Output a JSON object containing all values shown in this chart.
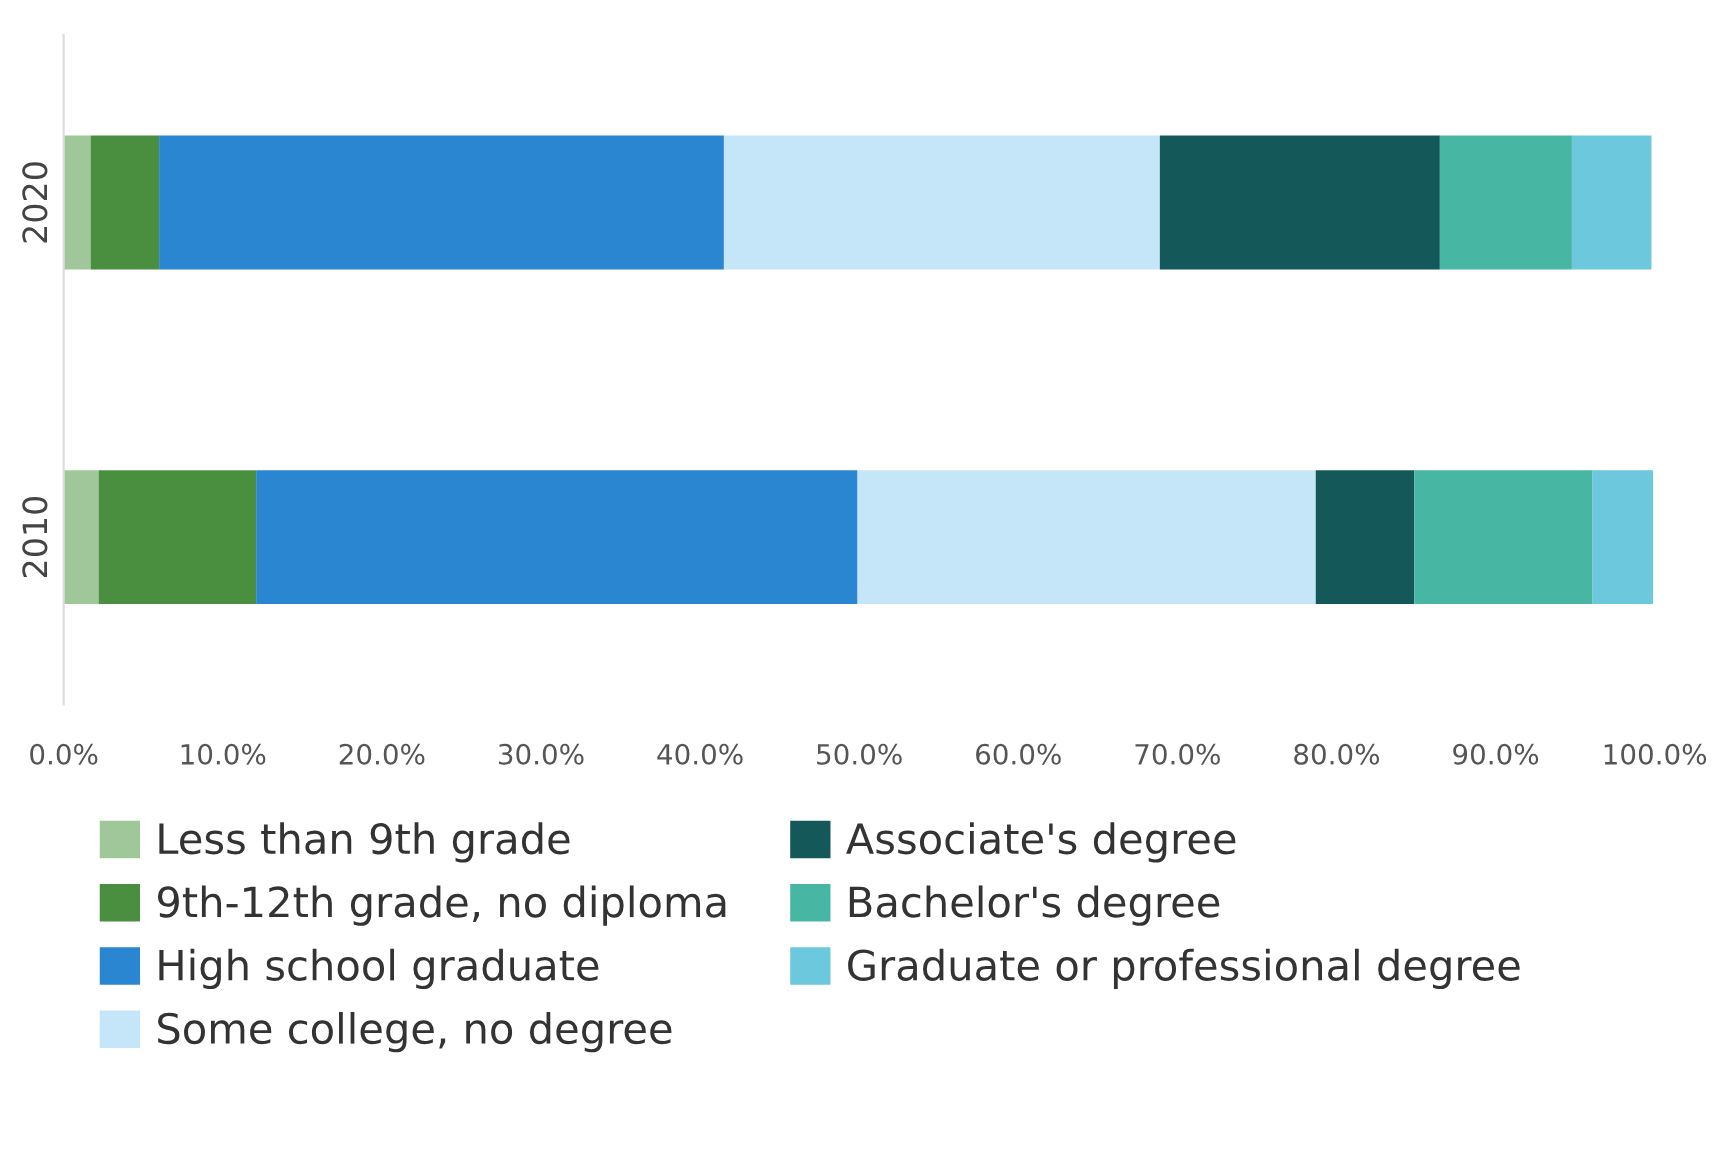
{
  "chart_data": {
    "type": "bar",
    "orientation": "horizontal",
    "stacked": true,
    "legend": "bottom",
    "grid": false,
    "categories": [
      "2020",
      "2010"
    ],
    "xlim": [
      0,
      100
    ],
    "xticks": [
      {
        "value": 0,
        "label": "0.0%"
      },
      {
        "value": 10,
        "label": "10.0%"
      },
      {
        "value": 20,
        "label": "20.0%"
      },
      {
        "value": 30,
        "label": "30.0%"
      },
      {
        "value": 40,
        "label": "40.0%"
      },
      {
        "value": 50,
        "label": "50.0%"
      },
      {
        "value": 60,
        "label": "60.0%"
      },
      {
        "value": 70,
        "label": "70.0%"
      },
      {
        "value": 80,
        "label": "80.0%"
      },
      {
        "value": 90,
        "label": "90.0%"
      },
      {
        "value": 100,
        "label": "100.0%"
      }
    ],
    "series": [
      {
        "name": "Less than 9th grade",
        "color": "#9fc79a",
        "values": [
          1.7,
          2.2
        ]
      },
      {
        "name": "9th-12th grade, no diploma",
        "color": "#4a8f3f",
        "values": [
          4.3,
          9.9
        ]
      },
      {
        "name": "High school graduate",
        "color": "#2a86d0",
        "values": [
          35.5,
          37.8
        ]
      },
      {
        "name": "Some college, no degree",
        "color": "#c4e6f8",
        "values": [
          27.4,
          28.8
        ]
      },
      {
        "name": "Associate's degree",
        "color": "#14585a",
        "values": [
          17.6,
          6.2
        ]
      },
      {
        "name": "Bachelor's degree",
        "color": "#47b7a4",
        "values": [
          8.3,
          11.2
        ]
      },
      {
        "name": "Graduate or professional degree",
        "color": "#6cc8dc",
        "values": [
          5.0,
          3.8
        ]
      }
    ]
  }
}
